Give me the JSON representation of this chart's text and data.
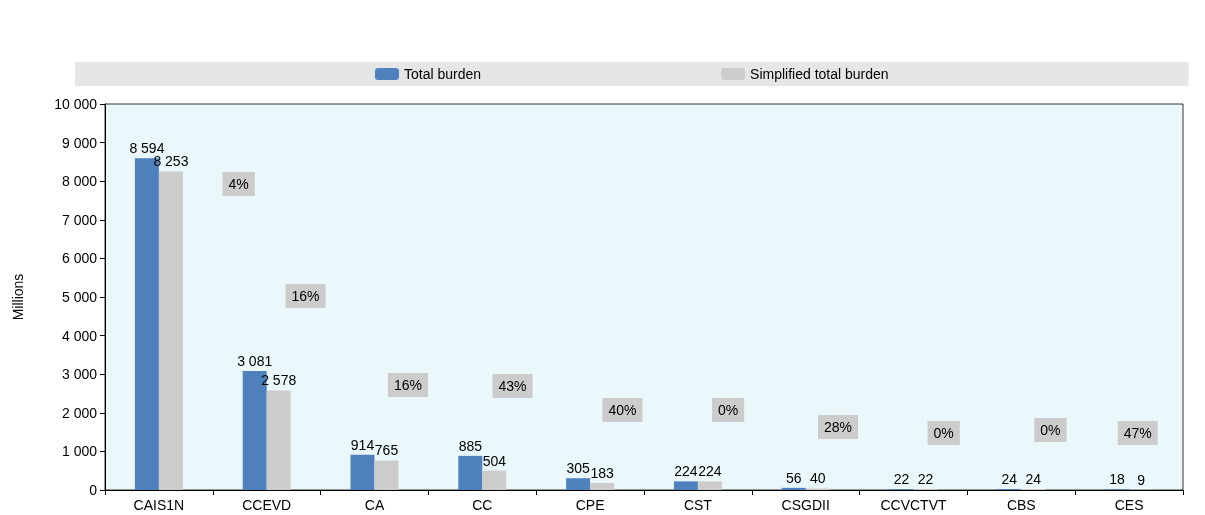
{
  "chart_data": {
    "type": "bar",
    "ylabel": "Millions",
    "categories": [
      "CAIS1N",
      "CCEVD",
      "CA",
      "CC",
      "CPE",
      "CST",
      "CSGDII",
      "CCVCTVT",
      "CBS",
      "CES"
    ],
    "series": [
      {
        "name": "Total burden",
        "color": "#4f81bd",
        "values": [
          8594,
          3081,
          914,
          885,
          305,
          224,
          56,
          22,
          24,
          18
        ],
        "value_labels": [
          "8 594",
          "3 081",
          "914",
          "885",
          "305",
          "224",
          "56",
          "22",
          "24",
          "18"
        ]
      },
      {
        "name": "Simplified total burden",
        "color": "#cccccc",
        "values": [
          8253,
          2578,
          765,
          504,
          183,
          224,
          40,
          22,
          24,
          9
        ],
        "value_labels": [
          "8 253",
          "2 578",
          "765",
          "504",
          "183",
          "224",
          "40",
          "22",
          "24",
          "9"
        ]
      }
    ],
    "ylim": [
      0,
      10000
    ],
    "yticks": [
      0,
      {
        "value": 1000,
        "label": "1 000"
      },
      {
        "value": 2000,
        "label": "2 000"
      },
      {
        "value": 3000,
        "label": "3 000"
      },
      {
        "value": 4000,
        "label": "4 000"
      },
      {
        "value": 5000,
        "label": "5 000"
      },
      {
        "value": 6000,
        "label": "6 000"
      },
      {
        "value": 7000,
        "label": "7 000"
      },
      {
        "value": 8000,
        "label": "8 000"
      },
      {
        "value": 9000,
        "label": "9 000"
      },
      {
        "value": 10000,
        "label": "10 000"
      }
    ],
    "annotations": [
      "4%",
      "16%",
      "16%",
      "43%",
      "40%",
      "0%",
      "28%",
      "0%",
      "0%",
      "47%"
    ],
    "grid": false,
    "legend": "top"
  }
}
